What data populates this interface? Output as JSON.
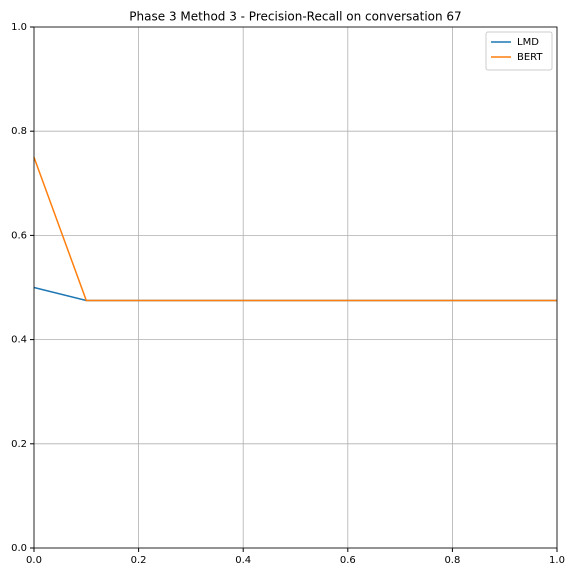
{
  "chart_data": {
    "type": "line",
    "title": "Phase 3 Method 3 - Precision-Recall on conversation 67",
    "x": [
      0,
      0.1,
      0.2,
      0.3,
      0.4,
      0.5,
      0.6,
      0.7,
      0.8,
      0.9,
      1.0
    ],
    "series": [
      {
        "name": "LMD",
        "color": "#1f77b4",
        "values": [
          0.5,
          0.475,
          0.475,
          0.475,
          0.475,
          0.475,
          0.475,
          0.475,
          0.475,
          0.475,
          0.475
        ]
      },
      {
        "name": "BERT",
        "color": "#ff7f0e",
        "values": [
          0.75,
          0.475,
          0.475,
          0.475,
          0.475,
          0.475,
          0.475,
          0.475,
          0.475,
          0.475,
          0.475
        ]
      }
    ],
    "xlim": [
      0,
      1
    ],
    "ylim": [
      0,
      1
    ],
    "xticks": [
      {
        "value": 0,
        "label": "0.0"
      },
      0.2,
      0.4,
      0.6,
      0.8,
      {
        "value": 1,
        "label": "1.0"
      }
    ],
    "yticks": [
      {
        "value": 0,
        "label": "0.0"
      },
      0.2,
      0.4,
      0.6,
      0.8,
      {
        "value": 1,
        "label": "1.0"
      }
    ],
    "grid": true,
    "legend": "upper-right"
  }
}
